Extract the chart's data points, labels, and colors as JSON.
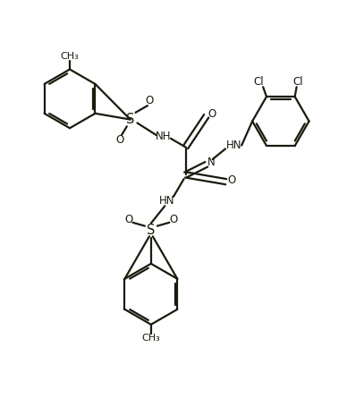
{
  "background_color": "#ffffff",
  "line_color": "#1a1a0d",
  "line_width": 1.6,
  "figsize": [
    3.88,
    4.45
  ],
  "dpi": 100,
  "xlim": [
    0,
    10
  ],
  "ylim": [
    0,
    11
  ]
}
